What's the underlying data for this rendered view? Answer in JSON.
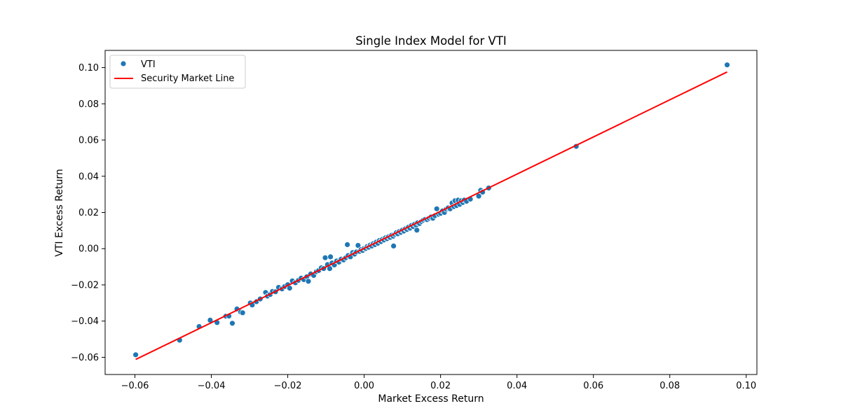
{
  "chart_data": {
    "type": "scatter",
    "title": "Single Index Model for VTI",
    "xlabel": "Market Excess Return",
    "ylabel": "VTI Excess Return",
    "xlim": [
      -0.0678,
      0.1028
    ],
    "ylim": [
      -0.0695,
      0.1095
    ],
    "xticks": [
      -0.06,
      -0.04,
      -0.02,
      0.0,
      0.02,
      0.04,
      0.06,
      0.08,
      0.1
    ],
    "yticks": [
      -0.06,
      -0.04,
      -0.02,
      0.0,
      0.02,
      0.04,
      0.06,
      0.08,
      0.1
    ],
    "xtick_labels": [
      "−0.06",
      "−0.04",
      "−0.02",
      "0.00",
      "0.02",
      "0.04",
      "0.06",
      "0.08",
      "0.10"
    ],
    "ytick_labels": [
      "−0.06",
      "−0.04",
      "−0.02",
      "0.00",
      "0.02",
      "0.04",
      "0.06",
      "0.08",
      "0.10"
    ],
    "grid": false,
    "legend_placement": "top-left",
    "series": [
      {
        "name": "VTI",
        "kind": "scatter",
        "color": "#1f77b4",
        "points": [
          [
            -0.0598,
            -0.0586
          ],
          [
            -0.0483,
            -0.0505
          ],
          [
            -0.0432,
            -0.043
          ],
          [
            -0.0403,
            -0.0395
          ],
          [
            -0.0385,
            -0.0408
          ],
          [
            -0.0362,
            -0.0373
          ],
          [
            -0.0354,
            -0.0372
          ],
          [
            -0.0345,
            -0.0412
          ],
          [
            -0.0333,
            -0.0333
          ],
          [
            -0.0323,
            -0.035
          ],
          [
            -0.0318,
            -0.0354
          ],
          [
            -0.0298,
            -0.03
          ],
          [
            -0.0293,
            -0.0311
          ],
          [
            -0.0282,
            -0.0293
          ],
          [
            -0.0272,
            -0.0278
          ],
          [
            -0.0258,
            -0.0242
          ],
          [
            -0.0253,
            -0.0262
          ],
          [
            -0.0246,
            -0.0253
          ],
          [
            -0.024,
            -0.0236
          ],
          [
            -0.0232,
            -0.0238
          ],
          [
            -0.0224,
            -0.0214
          ],
          [
            -0.0215,
            -0.0222
          ],
          [
            -0.0208,
            -0.0209
          ],
          [
            -0.02,
            -0.0199
          ],
          [
            -0.0195,
            -0.0218
          ],
          [
            -0.0188,
            -0.0178
          ],
          [
            -0.018,
            -0.0188
          ],
          [
            -0.0172,
            -0.0175
          ],
          [
            -0.0165,
            -0.0163
          ],
          [
            -0.0158,
            -0.0171
          ],
          [
            -0.015,
            -0.0155
          ],
          [
            -0.0146,
            -0.018
          ],
          [
            -0.014,
            -0.014
          ],
          [
            -0.0132,
            -0.0148
          ],
          [
            -0.0125,
            -0.0127
          ],
          [
            -0.0119,
            -0.0121
          ],
          [
            -0.0112,
            -0.0106
          ],
          [
            -0.0106,
            -0.011
          ],
          [
            -0.0102,
            -0.005
          ],
          [
            -0.0096,
            -0.0088
          ],
          [
            -0.009,
            -0.011
          ],
          [
            -0.0088,
            -0.0045
          ],
          [
            -0.0084,
            -0.0079
          ],
          [
            -0.0078,
            -0.009
          ],
          [
            -0.0072,
            -0.0068
          ],
          [
            -0.0066,
            -0.0074
          ],
          [
            -0.006,
            -0.0058
          ],
          [
            -0.0054,
            -0.0062
          ],
          [
            -0.0048,
            -0.005
          ],
          [
            -0.0044,
            0.0022
          ],
          [
            -0.0042,
            -0.0038
          ],
          [
            -0.0036,
            -0.0045
          ],
          [
            -0.003,
            -0.0022
          ],
          [
            -0.0025,
            -0.003
          ],
          [
            -0.002,
            -0.0018
          ],
          [
            -0.0016,
            0.0018
          ],
          [
            -0.0012,
            -0.0015
          ],
          [
            -0.0008,
            -0.0005
          ],
          [
            -0.0004,
            -0.001
          ],
          [
            0.0,
            0.0002
          ],
          [
            0.0004,
            0.0001
          ],
          [
            0.0008,
            0.0012
          ],
          [
            0.0012,
            0.0008
          ],
          [
            0.0016,
            0.002
          ],
          [
            0.002,
            0.0015
          ],
          [
            0.0024,
            0.0028
          ],
          [
            0.0028,
            0.0022
          ],
          [
            0.0032,
            0.0036
          ],
          [
            0.0036,
            0.003
          ],
          [
            0.004,
            0.0045
          ],
          [
            0.0044,
            0.0039
          ],
          [
            0.0048,
            0.0052
          ],
          [
            0.0052,
            0.0048
          ],
          [
            0.0056,
            0.006
          ],
          [
            0.006,
            0.0055
          ],
          [
            0.0064,
            0.0066
          ],
          [
            0.0068,
            0.0062
          ],
          [
            0.0072,
            0.0074
          ],
          [
            0.0076,
            0.0069
          ],
          [
            0.008,
            0.0079
          ],
          [
            0.0077,
            0.0015
          ],
          [
            0.0084,
            0.0088
          ],
          [
            0.0088,
            0.0082
          ],
          [
            0.0092,
            0.0095
          ],
          [
            0.0096,
            0.009
          ],
          [
            0.01,
            0.0102
          ],
          [
            0.0104,
            0.0097
          ],
          [
            0.0108,
            0.011
          ],
          [
            0.0112,
            0.0106
          ],
          [
            0.0116,
            0.0119
          ],
          [
            0.012,
            0.0113
          ],
          [
            0.0124,
            0.0128
          ],
          [
            0.0128,
            0.0122
          ],
          [
            0.0132,
            0.0135
          ],
          [
            0.0136,
            0.013
          ],
          [
            0.0138,
            0.0102
          ],
          [
            0.014,
            0.0143
          ],
          [
            0.0145,
            0.0139
          ],
          [
            0.015,
            0.015
          ],
          [
            0.0155,
            0.0157
          ],
          [
            0.016,
            0.0162
          ],
          [
            0.0165,
            0.016
          ],
          [
            0.017,
            0.0168
          ],
          [
            0.0175,
            0.0175
          ],
          [
            0.018,
            0.0168
          ],
          [
            0.0185,
            0.0182
          ],
          [
            0.019,
            0.022
          ],
          [
            0.0195,
            0.019
          ],
          [
            0.02,
            0.0195
          ],
          [
            0.0205,
            0.0208
          ],
          [
            0.021,
            0.02
          ],
          [
            0.0215,
            0.0218
          ],
          [
            0.022,
            0.0225
          ],
          [
            0.0225,
            0.022
          ],
          [
            0.023,
            0.0252
          ],
          [
            0.0235,
            0.0232
          ],
          [
            0.0238,
            0.0265
          ],
          [
            0.0242,
            0.0238
          ],
          [
            0.0246,
            0.0268
          ],
          [
            0.025,
            0.0245
          ],
          [
            0.0254,
            0.0265
          ],
          [
            0.0258,
            0.0255
          ],
          [
            0.0262,
            0.0268
          ],
          [
            0.0268,
            0.0262
          ],
          [
            0.0278,
            0.0274
          ],
          [
            0.03,
            0.029
          ],
          [
            0.0305,
            0.0322
          ],
          [
            0.031,
            0.0312
          ],
          [
            0.0326,
            0.0335
          ],
          [
            0.0555,
            0.0565
          ],
          [
            0.095,
            0.1015
          ]
        ]
      },
      {
        "name": "Security Market Line",
        "kind": "line",
        "color": "#ff0000",
        "x": [
          -0.0598,
          0.095
        ],
        "y": [
          -0.0612,
          0.0976
        ]
      }
    ]
  }
}
